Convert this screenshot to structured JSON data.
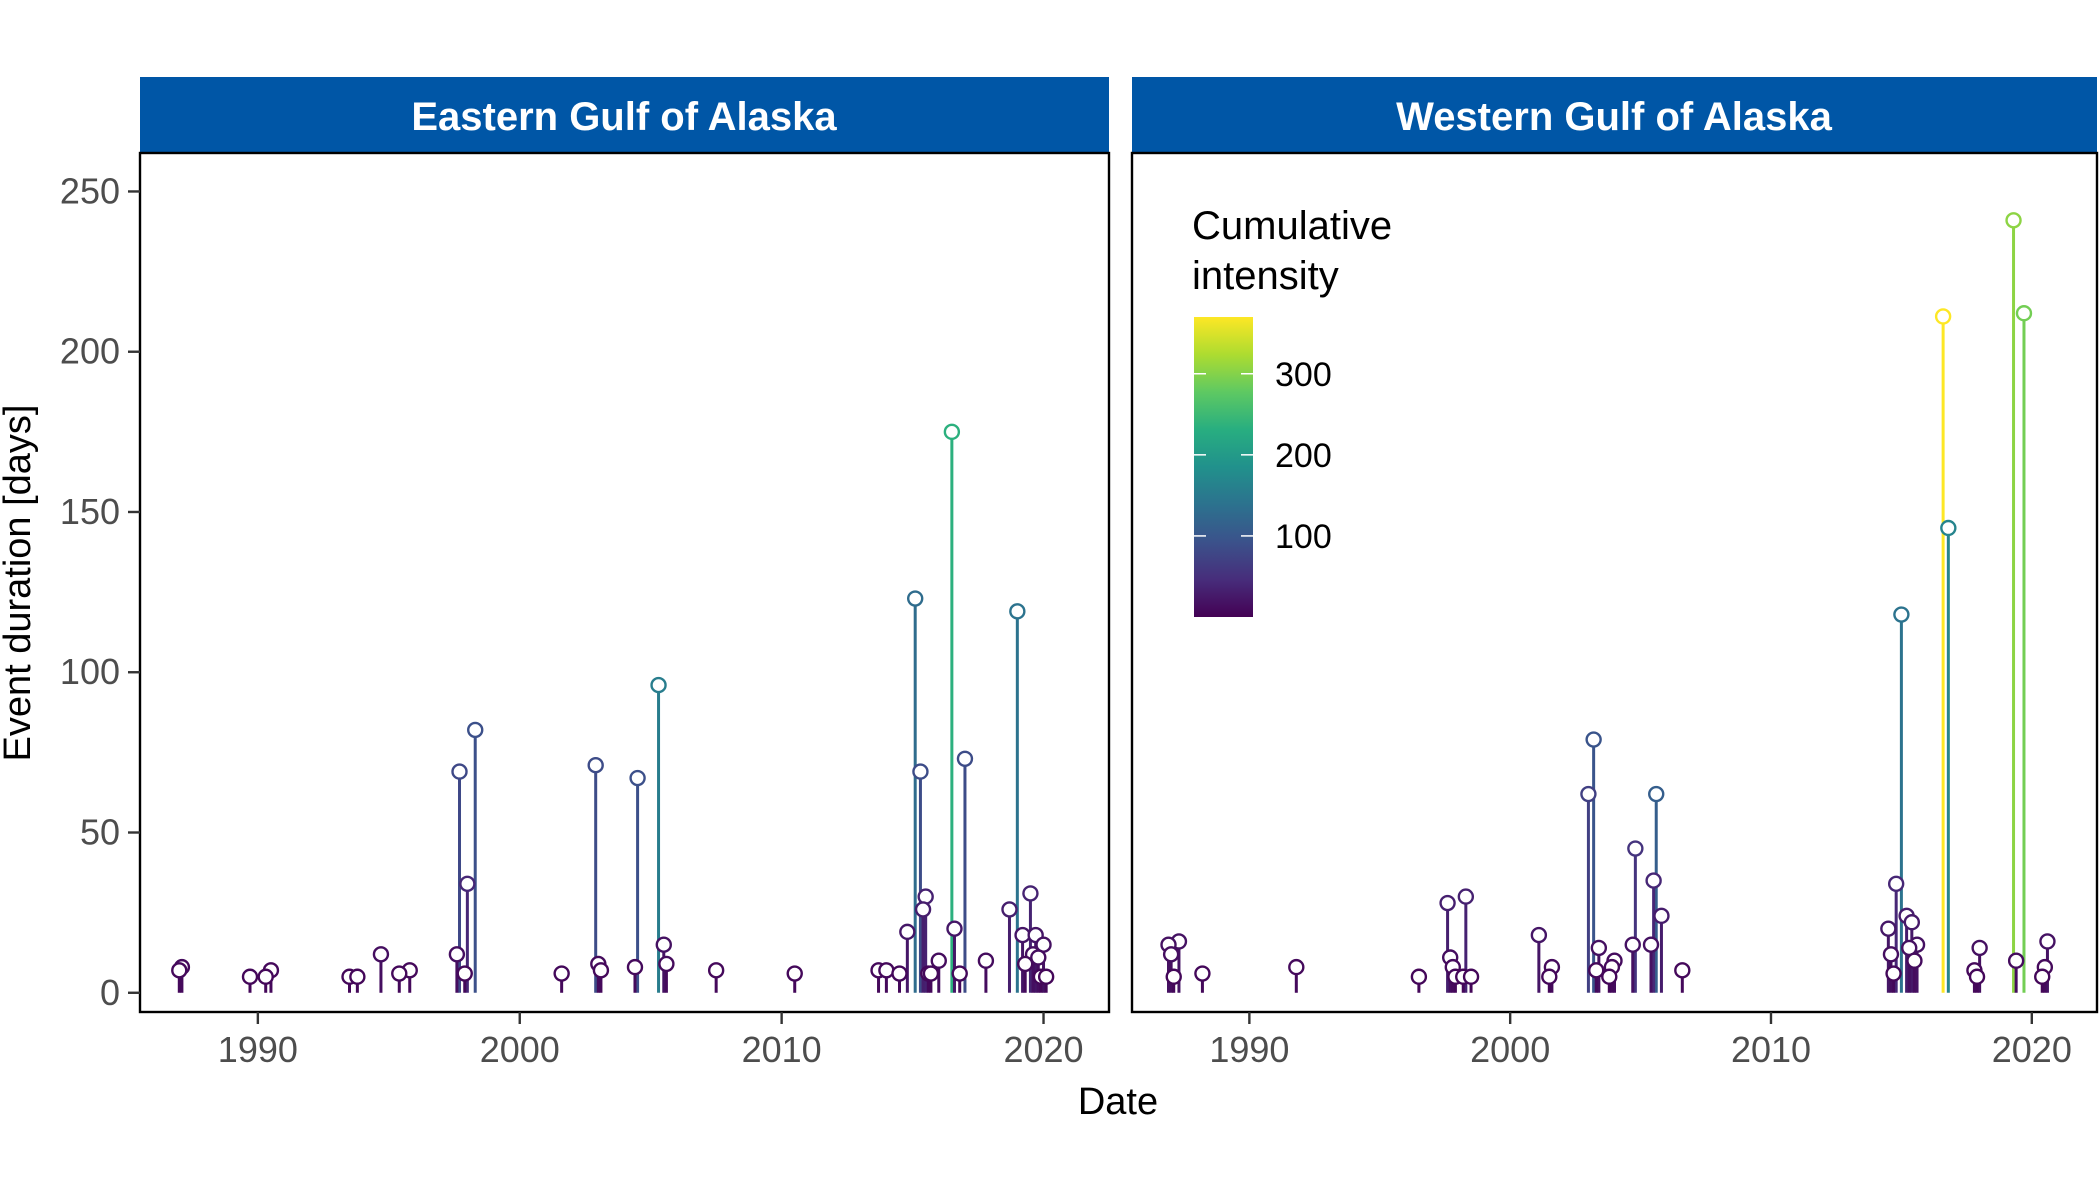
{
  "chart_data": {
    "type": "lollipop",
    "xlabel": "Date",
    "ylabel": "Event duration [days]",
    "x_ticks": [
      "1990",
      "2000",
      "2010",
      "2020"
    ],
    "x_tick_values": [
      1990,
      2000,
      2010,
      2020
    ],
    "xlim": [
      1985.5,
      2022.5
    ],
    "ylim": [
      -6,
      262
    ],
    "y_ticks": [
      0,
      50,
      100,
      150,
      200,
      250
    ],
    "y_tick_labels": [
      "0",
      "50",
      "100",
      "150",
      "200",
      "250"
    ],
    "grid": false,
    "legend": {
      "title_lines": [
        "Cumulative",
        "intensity"
      ],
      "position": "top-left inside right panel",
      "range": [
        0,
        370
      ],
      "ticks": [
        100,
        200,
        300
      ],
      "tick_labels": [
        "100",
        "200",
        "300"
      ],
      "colormap": [
        "#440154",
        "#472d7b",
        "#3b528b",
        "#2c728e",
        "#21918c",
        "#28ae80",
        "#5ec962",
        "#addc30",
        "#fde725"
      ]
    },
    "panels": [
      {
        "title": "Eastern Gulf of Alaska",
        "points": [
          {
            "x": 1987.0,
            "y": 7,
            "c": 8
          },
          {
            "x": 1987.1,
            "y": 8,
            "c": 9
          },
          {
            "x": 1989.7,
            "y": 5,
            "c": 6
          },
          {
            "x": 1990.3,
            "y": 5,
            "c": 6
          },
          {
            "x": 1990.5,
            "y": 7,
            "c": 8
          },
          {
            "x": 1993.5,
            "y": 5,
            "c": 6
          },
          {
            "x": 1993.8,
            "y": 5,
            "c": 6
          },
          {
            "x": 1994.7,
            "y": 12,
            "c": 14
          },
          {
            "x": 1995.4,
            "y": 6,
            "c": 7
          },
          {
            "x": 1995.8,
            "y": 7,
            "c": 8
          },
          {
            "x": 1997.6,
            "y": 12,
            "c": 14
          },
          {
            "x": 1997.7,
            "y": 69,
            "c": 80
          },
          {
            "x": 1997.9,
            "y": 6,
            "c": 7
          },
          {
            "x": 1998.0,
            "y": 34,
            "c": 40
          },
          {
            "x": 1998.3,
            "y": 82,
            "c": 90
          },
          {
            "x": 2001.6,
            "y": 6,
            "c": 7
          },
          {
            "x": 2002.9,
            "y": 71,
            "c": 85
          },
          {
            "x": 2003.0,
            "y": 9,
            "c": 10
          },
          {
            "x": 2003.1,
            "y": 7,
            "c": 8
          },
          {
            "x": 2004.4,
            "y": 8,
            "c": 9
          },
          {
            "x": 2004.5,
            "y": 67,
            "c": 90
          },
          {
            "x": 2005.3,
            "y": 96,
            "c": 155
          },
          {
            "x": 2005.5,
            "y": 15,
            "c": 17
          },
          {
            "x": 2005.6,
            "y": 9,
            "c": 10
          },
          {
            "x": 2007.5,
            "y": 7,
            "c": 8
          },
          {
            "x": 2010.5,
            "y": 6,
            "c": 7
          },
          {
            "x": 2013.7,
            "y": 7,
            "c": 8
          },
          {
            "x": 2014.0,
            "y": 7,
            "c": 8
          },
          {
            "x": 2014.5,
            "y": 6,
            "c": 7
          },
          {
            "x": 2014.8,
            "y": 19,
            "c": 22
          },
          {
            "x": 2015.1,
            "y": 123,
            "c": 130
          },
          {
            "x": 2015.3,
            "y": 69,
            "c": 85
          },
          {
            "x": 2015.4,
            "y": 26,
            "c": 30
          },
          {
            "x": 2015.5,
            "y": 30,
            "c": 34
          },
          {
            "x": 2015.6,
            "y": 6,
            "c": 7
          },
          {
            "x": 2015.7,
            "y": 6,
            "c": 7
          },
          {
            "x": 2016.0,
            "y": 10,
            "c": 12
          },
          {
            "x": 2016.5,
            "y": 175,
            "c": 235
          },
          {
            "x": 2016.6,
            "y": 20,
            "c": 23
          },
          {
            "x": 2016.8,
            "y": 6,
            "c": 7
          },
          {
            "x": 2017.0,
            "y": 73,
            "c": 85
          },
          {
            "x": 2017.8,
            "y": 10,
            "c": 12
          },
          {
            "x": 2018.7,
            "y": 26,
            "c": 30
          },
          {
            "x": 2019.0,
            "y": 119,
            "c": 140
          },
          {
            "x": 2019.2,
            "y": 18,
            "c": 21
          },
          {
            "x": 2019.3,
            "y": 9,
            "c": 10
          },
          {
            "x": 2019.5,
            "y": 31,
            "c": 36
          },
          {
            "x": 2019.6,
            "y": 12,
            "c": 14
          },
          {
            "x": 2019.7,
            "y": 18,
            "c": 21
          },
          {
            "x": 2019.8,
            "y": 11,
            "c": 13
          },
          {
            "x": 2019.9,
            "y": 5,
            "c": 6
          },
          {
            "x": 2020.0,
            "y": 15,
            "c": 17
          },
          {
            "x": 2020.1,
            "y": 5,
            "c": 6
          }
        ]
      },
      {
        "title": "Western Gulf of Alaska",
        "points": [
          {
            "x": 1986.9,
            "y": 15,
            "c": 17
          },
          {
            "x": 1987.0,
            "y": 12,
            "c": 14
          },
          {
            "x": 1987.1,
            "y": 5,
            "c": 6
          },
          {
            "x": 1987.3,
            "y": 16,
            "c": 18
          },
          {
            "x": 1988.2,
            "y": 6,
            "c": 7
          },
          {
            "x": 1991.8,
            "y": 8,
            "c": 9
          },
          {
            "x": 1996.5,
            "y": 5,
            "c": 6
          },
          {
            "x": 1997.6,
            "y": 28,
            "c": 32
          },
          {
            "x": 1997.7,
            "y": 11,
            "c": 13
          },
          {
            "x": 1997.8,
            "y": 8,
            "c": 9
          },
          {
            "x": 1997.9,
            "y": 5,
            "c": 6
          },
          {
            "x": 1998.2,
            "y": 5,
            "c": 6
          },
          {
            "x": 1998.3,
            "y": 30,
            "c": 34
          },
          {
            "x": 1998.5,
            "y": 5,
            "c": 6
          },
          {
            "x": 2001.1,
            "y": 18,
            "c": 21
          },
          {
            "x": 2001.5,
            "y": 5,
            "c": 6
          },
          {
            "x": 2001.6,
            "y": 8,
            "c": 9
          },
          {
            "x": 2003.0,
            "y": 62,
            "c": 70
          },
          {
            "x": 2003.2,
            "y": 79,
            "c": 95
          },
          {
            "x": 2003.3,
            "y": 7,
            "c": 8
          },
          {
            "x": 2003.4,
            "y": 14,
            "c": 16
          },
          {
            "x": 2003.8,
            "y": 5,
            "c": 6
          },
          {
            "x": 2003.9,
            "y": 8,
            "c": 9
          },
          {
            "x": 2004.0,
            "y": 10,
            "c": 12
          },
          {
            "x": 2004.7,
            "y": 15,
            "c": 17
          },
          {
            "x": 2004.8,
            "y": 45,
            "c": 55
          },
          {
            "x": 2005.4,
            "y": 15,
            "c": 17
          },
          {
            "x": 2005.5,
            "y": 35,
            "c": 40
          },
          {
            "x": 2005.6,
            "y": 62,
            "c": 110
          },
          {
            "x": 2005.8,
            "y": 24,
            "c": 28
          },
          {
            "x": 2006.6,
            "y": 7,
            "c": 8
          },
          {
            "x": 2014.5,
            "y": 20,
            "c": 23
          },
          {
            "x": 2014.6,
            "y": 12,
            "c": 14
          },
          {
            "x": 2014.7,
            "y": 6,
            "c": 7
          },
          {
            "x": 2014.8,
            "y": 34,
            "c": 40
          },
          {
            "x": 2015.0,
            "y": 118,
            "c": 140
          },
          {
            "x": 2015.2,
            "y": 24,
            "c": 28
          },
          {
            "x": 2015.3,
            "y": 14,
            "c": 16
          },
          {
            "x": 2015.4,
            "y": 22,
            "c": 25
          },
          {
            "x": 2015.5,
            "y": 10,
            "c": 12
          },
          {
            "x": 2015.6,
            "y": 15,
            "c": 17
          },
          {
            "x": 2016.6,
            "y": 211,
            "c": 370
          },
          {
            "x": 2016.8,
            "y": 145,
            "c": 165
          },
          {
            "x": 2017.8,
            "y": 7,
            "c": 8
          },
          {
            "x": 2017.9,
            "y": 5,
            "c": 6
          },
          {
            "x": 2018.0,
            "y": 14,
            "c": 16
          },
          {
            "x": 2019.3,
            "y": 241,
            "c": 305
          },
          {
            "x": 2019.4,
            "y": 10,
            "c": 12
          },
          {
            "x": 2019.7,
            "y": 212,
            "c": 290
          },
          {
            "x": 2020.4,
            "y": 5,
            "c": 6
          },
          {
            "x": 2020.5,
            "y": 8,
            "c": 9
          },
          {
            "x": 2020.6,
            "y": 16,
            "c": 18
          }
        ]
      }
    ]
  }
}
